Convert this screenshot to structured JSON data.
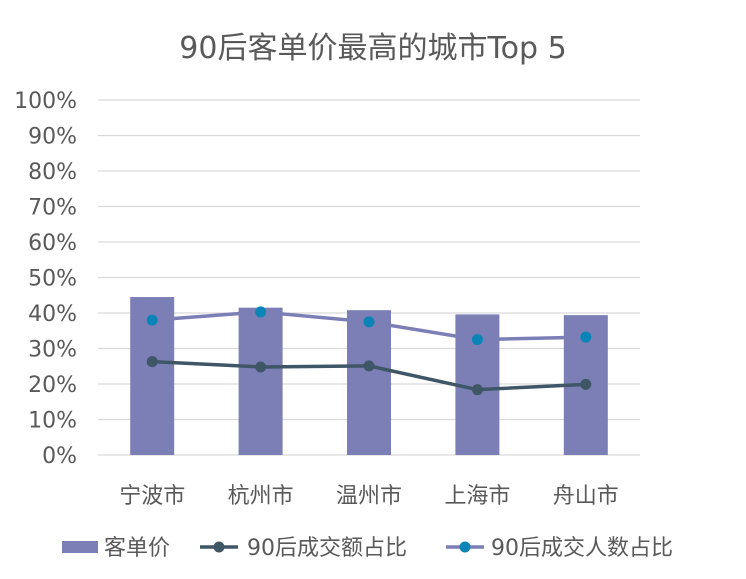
{
  "chart_data": {
    "type": "bar",
    "title": "90后客单价最高的城市Top 5",
    "categories": [
      "宁波市",
      "杭州市",
      "温州市",
      "上海市",
      "舟山市"
    ],
    "y_ticks": [
      "0%",
      "10%",
      "20%",
      "30%",
      "40%",
      "50%",
      "60%",
      "70%",
      "80%",
      "90%",
      "100%"
    ],
    "ylim": [
      0,
      100
    ],
    "grid": true,
    "legend_position": "bottom",
    "series": [
      {
        "name": "客单价",
        "type": "bar",
        "color": "#7b7fb5",
        "values": [
          44.5,
          41.5,
          40.8,
          39.6,
          39.4
        ]
      },
      {
        "name": "90后成交额占比",
        "type": "line",
        "color": "#3f5667",
        "marker": "circle",
        "values": [
          26.3,
          24.8,
          25.1,
          18.4,
          19.9
        ]
      },
      {
        "name": "90后成交人数占比",
        "type": "line",
        "color": "#7b7fb5",
        "marker_color": "#0b84b8",
        "marker": "circle",
        "values": [
          38.0,
          40.3,
          37.5,
          32.5,
          33.2
        ]
      }
    ]
  }
}
